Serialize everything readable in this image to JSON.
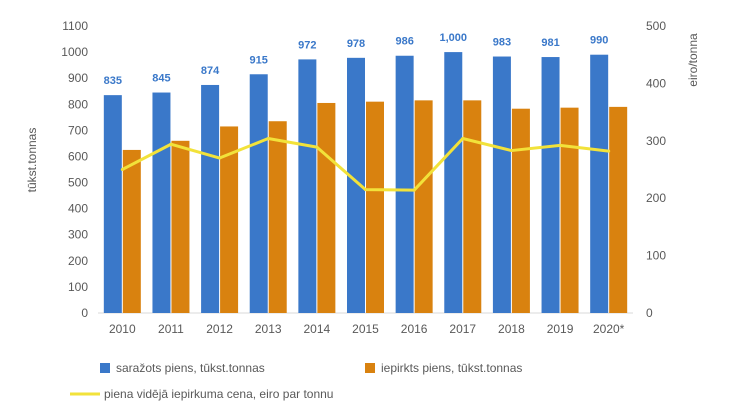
{
  "chart_data": {
    "type": "bar",
    "categories": [
      "2010",
      "2011",
      "2012",
      "2013",
      "2014",
      "2015",
      "2016",
      "2017",
      "2018",
      "2019",
      "2020*"
    ],
    "series": [
      {
        "name": "saražots piens, tūkst.tonnas",
        "type": "bar",
        "axis": "left",
        "color": "#3A78C9",
        "values": [
          835,
          845,
          874,
          915,
          972,
          978,
          986,
          1000,
          983,
          981,
          990
        ],
        "labels": [
          "835",
          "845",
          "874",
          "915",
          "972",
          "978",
          "986",
          "1,000",
          "983",
          "981",
          "990"
        ]
      },
      {
        "name": "iepirkts piens, tūkst.tonnas",
        "type": "bar",
        "axis": "left",
        "color": "#D9820F",
        "values": [
          625,
          660,
          715,
          735,
          805,
          810,
          815,
          815,
          783,
          787,
          790
        ]
      },
      {
        "name": "piena vidējā iepirkuma cena, eiro par tonnu",
        "type": "line",
        "axis": "right",
        "color": "#F2E23A",
        "values": [
          250,
          294,
          270,
          304,
          289,
          215,
          214,
          304,
          283,
          292,
          282
        ]
      }
    ],
    "ylabel": "tūkst.tonnas",
    "ylabel_right": "eiro/tonna",
    "ylim": [
      0,
      1100
    ],
    "y_ticks": [
      "0",
      "100",
      "200",
      "300",
      "400",
      "500",
      "600",
      "700",
      "800",
      "900",
      "1000",
      "1100"
    ],
    "ylim_right": [
      0,
      500
    ],
    "y_ticks_right": [
      "0",
      "100",
      "200",
      "300",
      "400",
      "500"
    ],
    "grid": false,
    "legend_position": "bottom"
  }
}
